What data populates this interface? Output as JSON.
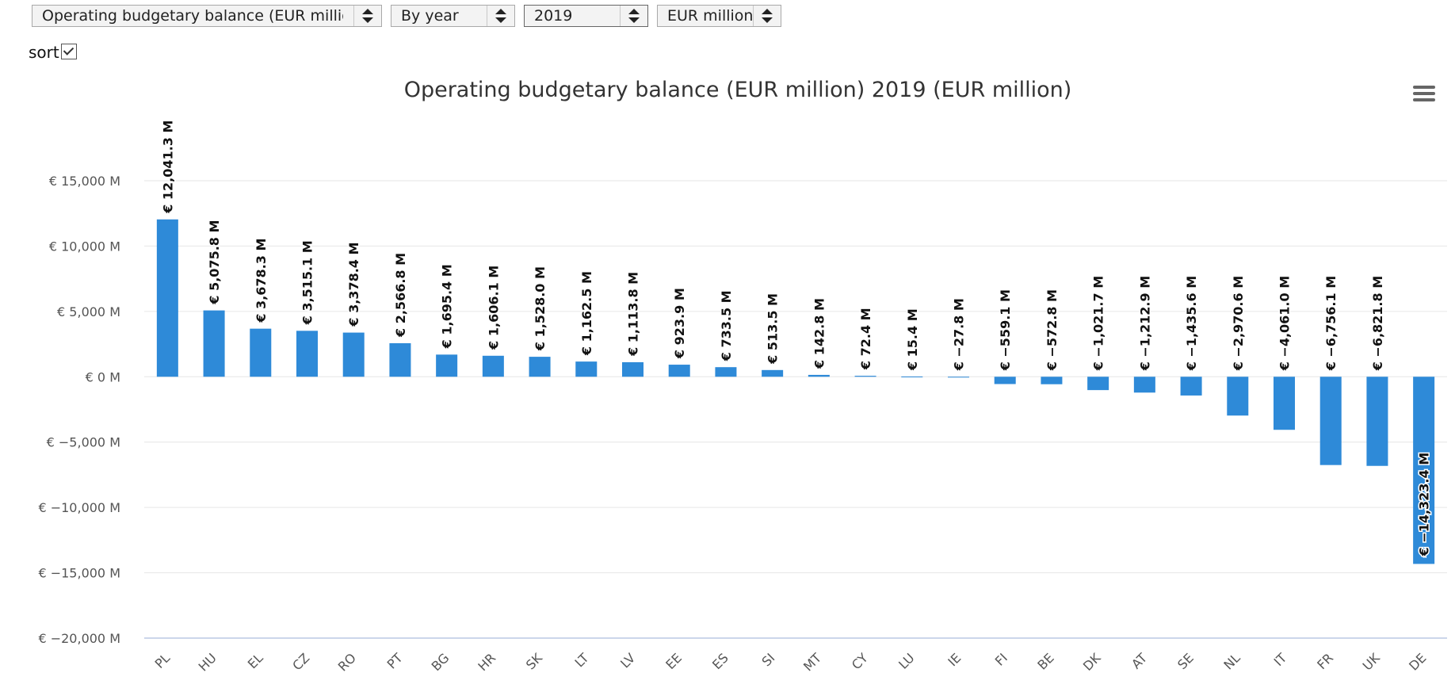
{
  "controls": {
    "indicator": "Operating budgetary balance (EUR million)",
    "mode": "By year",
    "year": "2019",
    "unit": "EUR million",
    "sort_label": "sort",
    "sort_checked": true
  },
  "menu_icon": "hamburger-menu-icon",
  "colors": {
    "bar": "#2e8ad8",
    "grid": "#e6e6e6",
    "axis": "#ccd6eb"
  },
  "chart_data": {
    "type": "bar",
    "title": "Operating budgetary balance (EUR million) 2019 (EUR million)",
    "categories": [
      "PL",
      "HU",
      "EL",
      "CZ",
      "RO",
      "PT",
      "BG",
      "HR",
      "SK",
      "LT",
      "LV",
      "EE",
      "ES",
      "SI",
      "MT",
      "CY",
      "LU",
      "IE",
      "FI",
      "BE",
      "DK",
      "AT",
      "SE",
      "NL",
      "IT",
      "FR",
      "UK",
      "DE"
    ],
    "values": [
      12041.3,
      5075.8,
      3678.3,
      3515.1,
      3378.4,
      2566.8,
      1695.4,
      1606.1,
      1528.0,
      1162.5,
      1113.8,
      923.9,
      733.5,
      513.5,
      142.8,
      72.4,
      15.4,
      -27.8,
      -559.1,
      -572.8,
      -1021.7,
      -1212.9,
      -1435.6,
      -2970.6,
      -4061.0,
      -6756.1,
      -6821.8,
      -14323.4
    ],
    "data_labels": [
      "€ 12,041.3 M",
      "€ 5,075.8 M",
      "€ 3,678.3 M",
      "€ 3,515.1 M",
      "€ 3,378.4 M",
      "€ 2,566.8 M",
      "€ 1,695.4 M",
      "€ 1,606.1 M",
      "€ 1,528.0 M",
      "€ 1,162.5 M",
      "€ 1,113.8 M",
      "€ 923.9 M",
      "€ 733.5 M",
      "€ 513.5 M",
      "€ 142.8 M",
      "€ 72.4 M",
      "€ 15.4 M",
      "€ −27.8 M",
      "€ −559.1 M",
      "€ −572.8 M",
      "€ −1,021.7 M",
      "€ −1,212.9 M",
      "€ −1,435.6 M",
      "€ −2,970.6 M",
      "€ −4,061.0 M",
      "€ −6,756.1 M",
      "€ −6,821.8 M",
      "€ −14,323.4 M"
    ],
    "y_ticks": [
      15000,
      10000,
      5000,
      0,
      -5000,
      -10000,
      -15000,
      -20000
    ],
    "y_tick_labels": [
      "€ 15,000 M",
      "€ 10,000 M",
      "€ 5,000 M",
      "€ 0 M",
      "€ −5,000 M",
      "€ −10,000 M",
      "€ −15,000 M",
      "€ −20,000 M"
    ],
    "ylim": [
      -20000,
      15000
    ],
    "grid": true,
    "legend": "none"
  }
}
